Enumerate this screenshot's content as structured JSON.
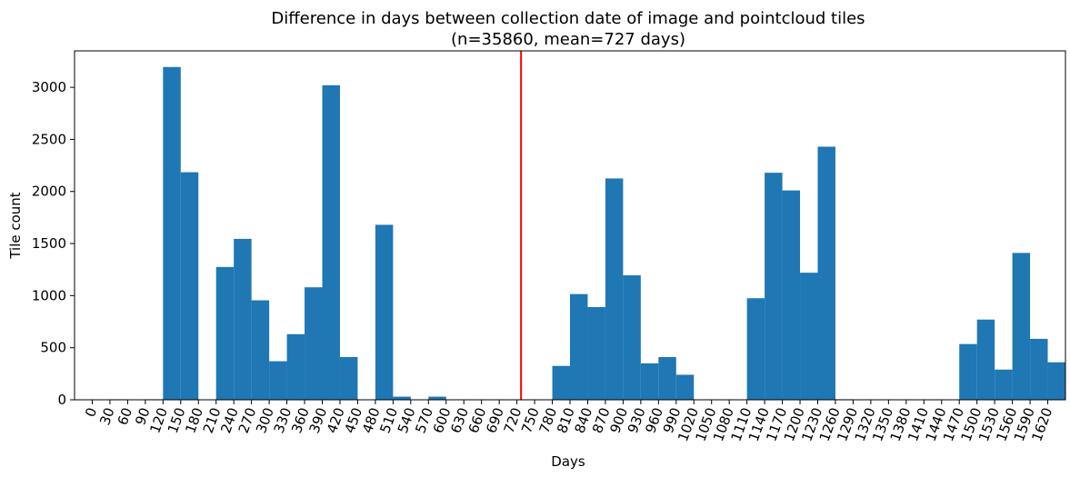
{
  "chart_data": {
    "type": "bar",
    "title": "Difference in days between collection date of image and pointcloud tiles",
    "subtitle": "(n=35860, mean=727 days)",
    "xlabel": "Days",
    "ylabel": "Tile count",
    "bin_width": 30,
    "x_ticks": [
      "0",
      "30",
      "60",
      "90",
      "120",
      "150",
      "180",
      "210",
      "240",
      "270",
      "300",
      "330",
      "360",
      "390",
      "420",
      "450",
      "480",
      "510",
      "540",
      "570",
      "600",
      "630",
      "660",
      "690",
      "720",
      "750",
      "780",
      "810",
      "840",
      "870",
      "900",
      "930",
      "960",
      "990",
      "1020",
      "1050",
      "1080",
      "1110",
      "1140",
      "1170",
      "1200",
      "1230",
      "1260",
      "1290",
      "1320",
      "1350",
      "1380",
      "1410",
      "1440",
      "1470",
      "1500",
      "1530",
      "1560",
      "1590",
      "1620"
    ],
    "y_ticks": [
      0,
      500,
      1000,
      1500,
      2000,
      2500,
      3000
    ],
    "ylim": [
      0,
      3350
    ],
    "xlim": [
      -30,
      1650
    ],
    "bins": [
      {
        "x": 0,
        "value": 0
      },
      {
        "x": 30,
        "value": 5
      },
      {
        "x": 60,
        "value": 0
      },
      {
        "x": 90,
        "value": 5
      },
      {
        "x": 120,
        "value": 3195
      },
      {
        "x": 150,
        "value": 2185
      },
      {
        "x": 180,
        "value": 0
      },
      {
        "x": 210,
        "value": 1275
      },
      {
        "x": 240,
        "value": 1545
      },
      {
        "x": 270,
        "value": 955
      },
      {
        "x": 300,
        "value": 370
      },
      {
        "x": 330,
        "value": 630
      },
      {
        "x": 360,
        "value": 1080
      },
      {
        "x": 390,
        "value": 3020
      },
      {
        "x": 420,
        "value": 410
      },
      {
        "x": 450,
        "value": 0
      },
      {
        "x": 480,
        "value": 1680
      },
      {
        "x": 510,
        "value": 30
      },
      {
        "x": 540,
        "value": 0
      },
      {
        "x": 570,
        "value": 30
      },
      {
        "x": 600,
        "value": 0
      },
      {
        "x": 630,
        "value": 0
      },
      {
        "x": 660,
        "value": 0
      },
      {
        "x": 690,
        "value": 0
      },
      {
        "x": 720,
        "value": 0
      },
      {
        "x": 750,
        "value": 0
      },
      {
        "x": 780,
        "value": 325
      },
      {
        "x": 810,
        "value": 1015
      },
      {
        "x": 840,
        "value": 890
      },
      {
        "x": 870,
        "value": 2125
      },
      {
        "x": 900,
        "value": 1195
      },
      {
        "x": 930,
        "value": 350
      },
      {
        "x": 960,
        "value": 410
      },
      {
        "x": 990,
        "value": 240
      },
      {
        "x": 1020,
        "value": 0
      },
      {
        "x": 1050,
        "value": 0
      },
      {
        "x": 1080,
        "value": 0
      },
      {
        "x": 1110,
        "value": 975
      },
      {
        "x": 1140,
        "value": 2180
      },
      {
        "x": 1170,
        "value": 2010
      },
      {
        "x": 1200,
        "value": 1220
      },
      {
        "x": 1230,
        "value": 2430
      },
      {
        "x": 1260,
        "value": 5
      },
      {
        "x": 1290,
        "value": 0
      },
      {
        "x": 1320,
        "value": 0
      },
      {
        "x": 1350,
        "value": 0
      },
      {
        "x": 1380,
        "value": 0
      },
      {
        "x": 1410,
        "value": 0
      },
      {
        "x": 1440,
        "value": 0
      },
      {
        "x": 1470,
        "value": 535
      },
      {
        "x": 1500,
        "value": 770
      },
      {
        "x": 1530,
        "value": 290
      },
      {
        "x": 1560,
        "value": 1410
      },
      {
        "x": 1590,
        "value": 585
      },
      {
        "x": 1620,
        "value": 360
      }
    ],
    "mean_line": {
      "x": 727,
      "color": "#ff0000"
    },
    "bar_color": "#1f77b4",
    "grid": false,
    "legend": "none"
  }
}
